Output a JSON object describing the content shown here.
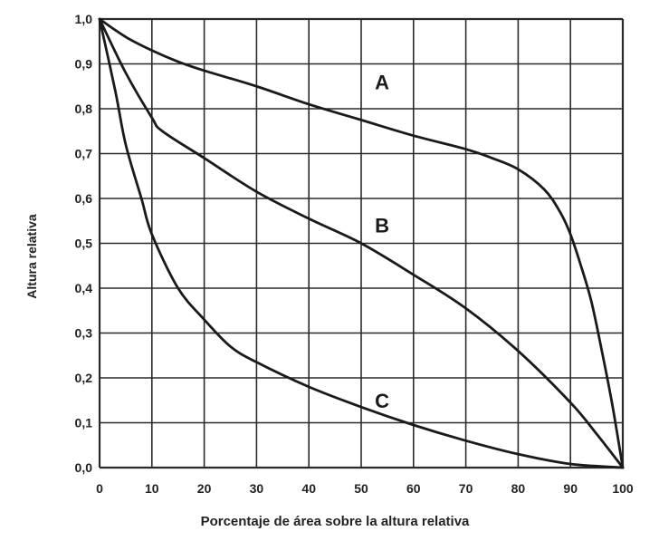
{
  "chart_data": {
    "type": "line",
    "xlabel": "Porcentaje de área sobre la altura relativa",
    "ylabel": "Altura relativa",
    "xlim": [
      0,
      100
    ],
    "ylim": [
      0,
      1
    ],
    "x_ticks": [
      "0",
      "10",
      "20",
      "30",
      "40",
      "50",
      "60",
      "70",
      "80",
      "90",
      "100"
    ],
    "y_ticks": [
      "0,0",
      "0,1",
      "0,2",
      "0,3",
      "0,4",
      "0,5",
      "0,6",
      "0,7",
      "0,8",
      "0,9",
      "1,0"
    ],
    "grid": true,
    "line_color": "#1a1a1a",
    "grid_color": "#2a2a2a",
    "series": [
      {
        "name": "A",
        "points": [
          [
            0,
            1.0
          ],
          [
            5,
            0.96
          ],
          [
            10,
            0.93
          ],
          [
            15,
            0.905
          ],
          [
            20,
            0.885
          ],
          [
            30,
            0.85
          ],
          [
            40,
            0.81
          ],
          [
            50,
            0.775
          ],
          [
            60,
            0.74
          ],
          [
            70,
            0.71
          ],
          [
            75,
            0.69
          ],
          [
            80,
            0.665
          ],
          [
            85,
            0.62
          ],
          [
            88,
            0.57
          ],
          [
            90,
            0.52
          ],
          [
            92,
            0.45
          ],
          [
            94,
            0.37
          ],
          [
            96,
            0.26
          ],
          [
            98,
            0.14
          ],
          [
            100,
            0.0
          ]
        ]
      },
      {
        "name": "B",
        "points": [
          [
            0,
            1.0
          ],
          [
            5,
            0.88
          ],
          [
            10,
            0.78
          ],
          [
            12,
            0.75
          ],
          [
            20,
            0.69
          ],
          [
            30,
            0.615
          ],
          [
            40,
            0.555
          ],
          [
            50,
            0.5
          ],
          [
            60,
            0.43
          ],
          [
            70,
            0.355
          ],
          [
            80,
            0.26
          ],
          [
            90,
            0.145
          ],
          [
            95,
            0.075
          ],
          [
            100,
            0.0
          ]
        ]
      },
      {
        "name": "C",
        "points": [
          [
            0,
            1.0
          ],
          [
            3,
            0.84
          ],
          [
            5,
            0.72
          ],
          [
            8,
            0.6
          ],
          [
            10,
            0.52
          ],
          [
            15,
            0.4
          ],
          [
            20,
            0.33
          ],
          [
            25,
            0.27
          ],
          [
            30,
            0.235
          ],
          [
            40,
            0.18
          ],
          [
            50,
            0.135
          ],
          [
            60,
            0.095
          ],
          [
            70,
            0.06
          ],
          [
            80,
            0.03
          ],
          [
            90,
            0.008
          ],
          [
            100,
            0.0
          ]
        ]
      }
    ],
    "annotations": [
      {
        "text": "A",
        "x": 54,
        "y": 0.86
      },
      {
        "text": "B",
        "x": 54,
        "y": 0.54
      },
      {
        "text": "C",
        "x": 54,
        "y": 0.15
      }
    ]
  }
}
